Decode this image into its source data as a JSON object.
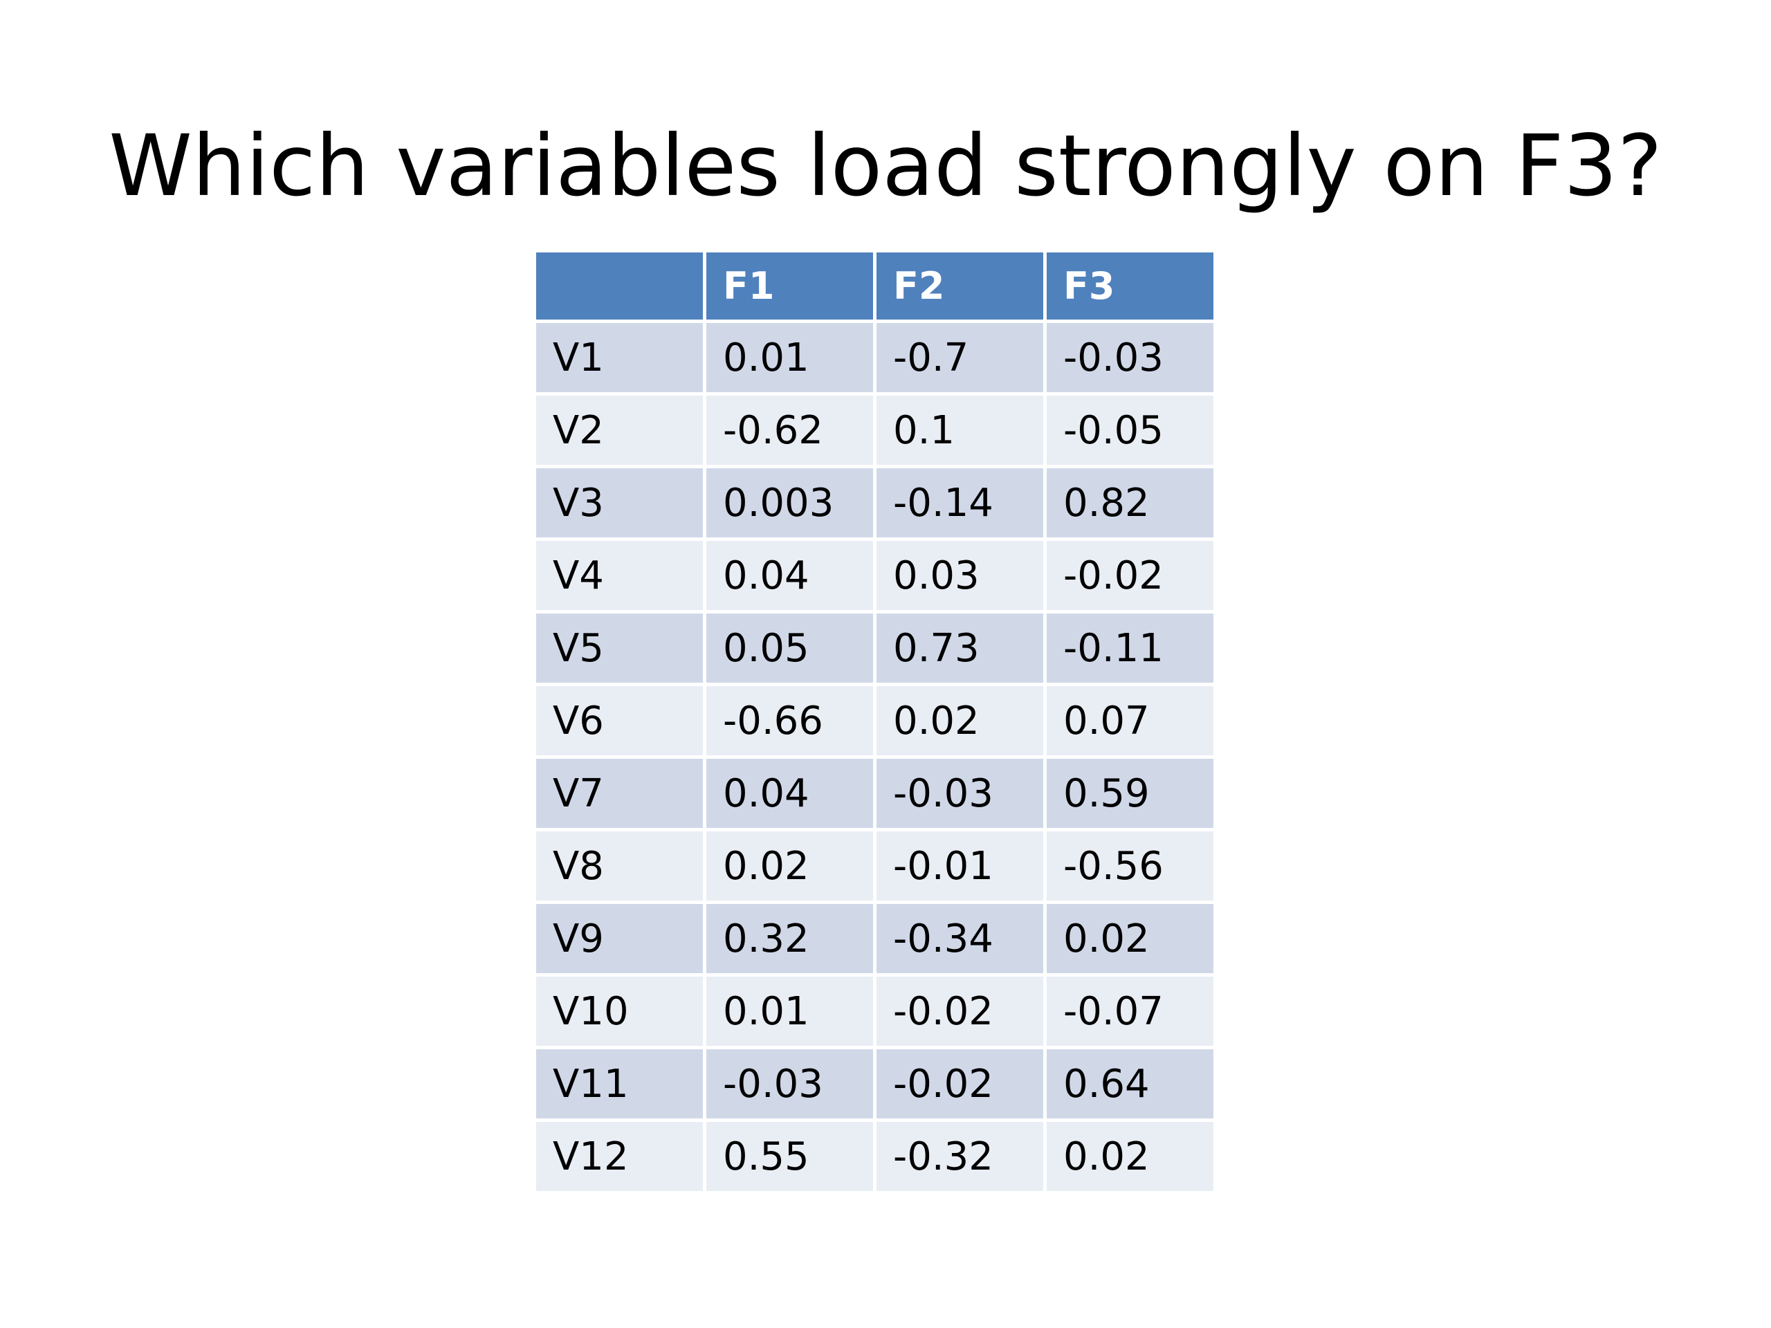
{
  "slide": {
    "title": "Which variables load strongly on F3?"
  },
  "table": {
    "headers": [
      "",
      "F1",
      "F2",
      "F3"
    ],
    "rows": [
      [
        "V1",
        "0.01",
        "-0.7",
        "-0.03"
      ],
      [
        "V2",
        "-0.62",
        "0.1",
        "-0.05"
      ],
      [
        "V3",
        "0.003",
        "-0.14",
        "0.82"
      ],
      [
        "V4",
        "0.04",
        "0.03",
        "-0.02"
      ],
      [
        "V5",
        "0.05",
        "0.73",
        "-0.11"
      ],
      [
        "V6",
        "-0.66",
        "0.02",
        "0.07"
      ],
      [
        "V7",
        "0.04",
        "-0.03",
        "0.59"
      ],
      [
        "V8",
        "0.02",
        "-0.01",
        "-0.56"
      ],
      [
        "V9",
        "0.32",
        "-0.34",
        "0.02"
      ],
      [
        "V10",
        "0.01",
        "-0.02",
        "-0.07"
      ],
      [
        "V11",
        "-0.03",
        "-0.02",
        "0.64"
      ],
      [
        "V12",
        "0.55",
        "-0.32",
        "0.02"
      ]
    ]
  },
  "colors": {
    "header_fill": "#4f81bd",
    "header_text": "#ffffff",
    "row_band_dark": "#d0d8e8",
    "row_band_light": "#e9edf4"
  }
}
